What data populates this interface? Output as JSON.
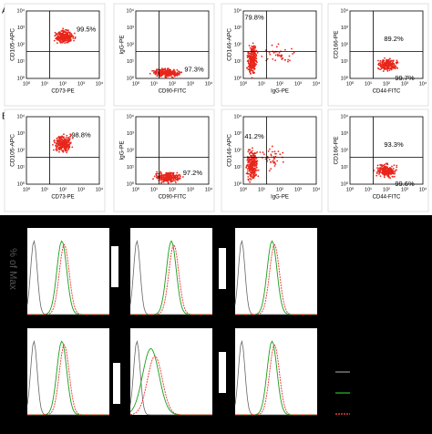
{
  "panels": [
    {
      "row": "A",
      "plots": [
        {
          "y_label": "CD105-APC",
          "x_label": "CD73-PE",
          "percentages": [
            "99.5%"
          ]
        },
        {
          "y_label": "IgG-PE",
          "x_label": "CD90-FITC",
          "percentages": [
            "97.3%"
          ]
        },
        {
          "y_label": "CD146-APC",
          "x_label": "IgG-PE",
          "percentages": [
            "79.8%"
          ]
        },
        {
          "y_label": "CD166-PE",
          "x_label": "CD44-FITC",
          "percentages": [
            "89.2%",
            "99.7%"
          ]
        }
      ]
    },
    {
      "row": "B",
      "plots": [
        {
          "y_label": "CD105-APC",
          "x_label": "CD73-PE",
          "percentages": [
            "98.8%"
          ]
        },
        {
          "y_label": "IgG-PE",
          "x_label": "CD90-FITC",
          "percentages": [
            "97.2%"
          ]
        },
        {
          "y_label": "CD146-APC",
          "x_label": "IgG-PE",
          "percentages": [
            "41.2%"
          ]
        },
        {
          "y_label": "CD166-PE",
          "x_label": "CD44-FITC",
          "percentages": [
            "93.3%",
            "99.6%"
          ]
        }
      ]
    }
  ],
  "tick_labels": [
    "10⁰",
    "10¹",
    "10²",
    "10³",
    "10⁴"
  ],
  "histogram_y_label": "% of Max"
}
